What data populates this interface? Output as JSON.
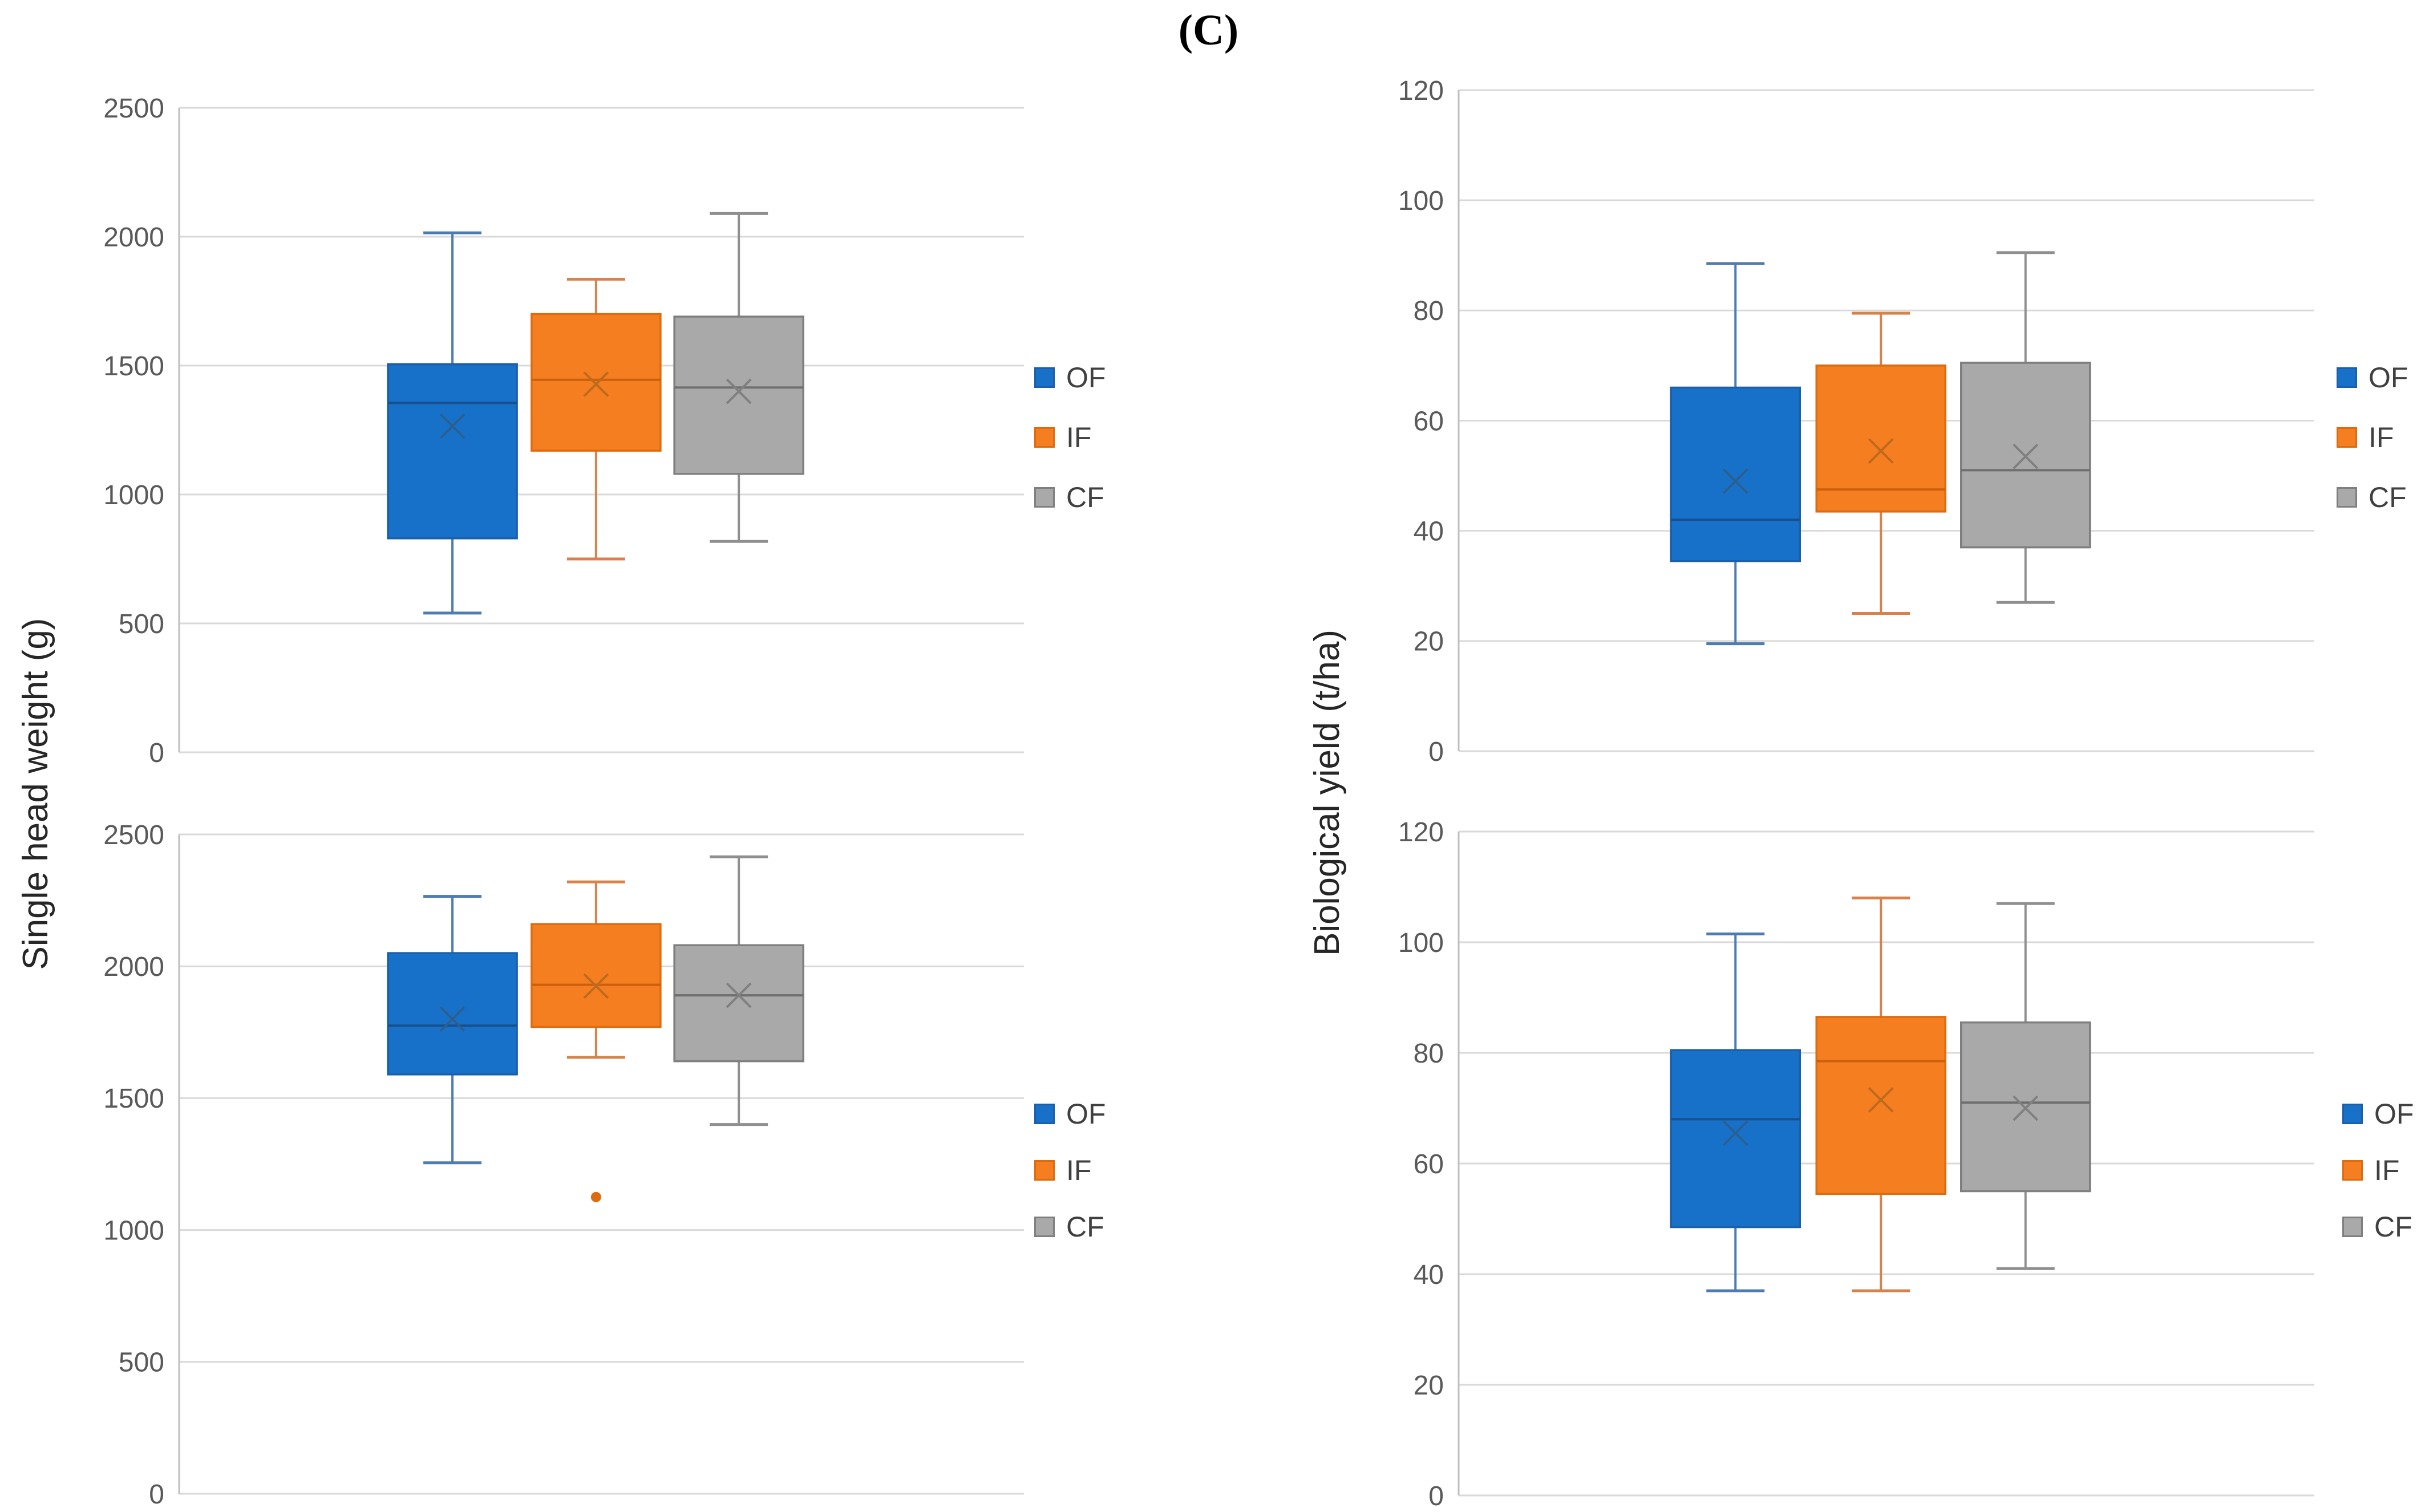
{
  "figure": {
    "title": "(C)"
  },
  "axis_titles": {
    "left": "Single head weight (g)",
    "right": "Biological yield (t/ha)"
  },
  "palette": {
    "gridline": "#D9D9D9",
    "axis_line": "#BFBFBF",
    "tick_label": "#595959",
    "legend_label": "#404040",
    "axis_title": "#262626",
    "figure_title": "#000000"
  },
  "chart_data": [
    {
      "id": "shw-top",
      "type": "boxplot",
      "panel": "top-left",
      "ylabel": "Single head weight (g)",
      "ylim": [
        0,
        2500
      ],
      "yticks": [
        0,
        500,
        1000,
        1500,
        2000,
        2500
      ],
      "grid": true,
      "legend_position": "right",
      "series": [
        {
          "name": "OF",
          "fill": "#1871C9",
          "border": "#1A5FA8",
          "median_color": "#17508C",
          "whisker_color": "#4E7CB0",
          "mean_color": "#2C5F8F",
          "min": 540,
          "q1": 830,
          "median": 1355,
          "mean": 1265,
          "q3": 1505,
          "max": 2015,
          "outliers": []
        },
        {
          "name": "IF",
          "fill": "#F57E20",
          "border": "#DD6B10",
          "median_color": "#CC5F0B",
          "whisker_color": "#D8824B",
          "mean_color": "#BE6A1E",
          "min": 750,
          "q1": 1170,
          "median": 1445,
          "mean": 1428,
          "q3": 1700,
          "max": 1835,
          "outliers": []
        },
        {
          "name": "CF",
          "fill": "#A9A9A9",
          "border": "#7F7F7F",
          "median_color": "#6E6E6E",
          "whisker_color": "#8F8F8F",
          "mean_color": "#808080",
          "min": 818,
          "q1": 1080,
          "median": 1415,
          "mean": 1400,
          "q3": 1690,
          "max": 2090,
          "outliers": []
        }
      ]
    },
    {
      "id": "by-top",
      "type": "boxplot",
      "panel": "top-right",
      "ylabel": "Biological yield (t/ha)",
      "ylim": [
        0,
        120
      ],
      "yticks": [
        0,
        20,
        40,
        60,
        80,
        100,
        120
      ],
      "grid": true,
      "legend_position": "right",
      "series": [
        {
          "name": "OF",
          "fill": "#1871C9",
          "border": "#1A5FA8",
          "median_color": "#17508C",
          "whisker_color": "#4E7CB0",
          "mean_color": "#2C5F8F",
          "min": 19.5,
          "q1": 34.5,
          "median": 42,
          "mean": 49,
          "q3": 66,
          "max": 88.5,
          "outliers": []
        },
        {
          "name": "IF",
          "fill": "#F57E20",
          "border": "#DD6B10",
          "median_color": "#CC5F0B",
          "whisker_color": "#D8824B",
          "mean_color": "#BE6A1E",
          "min": 25,
          "q1": 43.5,
          "median": 47.5,
          "mean": 54.5,
          "q3": 70,
          "max": 79.5,
          "outliers": []
        },
        {
          "name": "CF",
          "fill": "#A9A9A9",
          "border": "#7F7F7F",
          "median_color": "#6E6E6E",
          "whisker_color": "#8F8F8F",
          "mean_color": "#808080",
          "min": 27,
          "q1": 37,
          "median": 51,
          "mean": 53.5,
          "q3": 70.5,
          "max": 90.5,
          "outliers": []
        }
      ]
    },
    {
      "id": "shw-bottom",
      "type": "boxplot",
      "panel": "bottom-left",
      "ylabel": "Single head weight (g)",
      "ylim": [
        0,
        2500
      ],
      "yticks": [
        0,
        500,
        1000,
        1500,
        2000,
        2500
      ],
      "grid": true,
      "legend_position": "right",
      "series": [
        {
          "name": "OF",
          "fill": "#1871C9",
          "border": "#1A5FA8",
          "median_color": "#17508C",
          "whisker_color": "#4E7CB0",
          "mean_color": "#2C5F8F",
          "min": 1255,
          "q1": 1590,
          "median": 1775,
          "mean": 1800,
          "q3": 2050,
          "max": 2265,
          "outliers": []
        },
        {
          "name": "IF",
          "fill": "#F57E20",
          "border": "#DD6B10",
          "median_color": "#CC5F0B",
          "whisker_color": "#D8824B",
          "mean_color": "#BE6A1E",
          "min": 1655,
          "q1": 1770,
          "median": 1930,
          "mean": 1925,
          "q3": 2160,
          "max": 2320,
          "outliers": [
            1125
          ]
        },
        {
          "name": "CF",
          "fill": "#A9A9A9",
          "border": "#7F7F7F",
          "median_color": "#6E6E6E",
          "whisker_color": "#8F8F8F",
          "mean_color": "#808080",
          "min": 1400,
          "q1": 1640,
          "median": 1890,
          "mean": 1890,
          "q3": 2080,
          "max": 2415,
          "outliers": []
        }
      ]
    },
    {
      "id": "by-bottom",
      "type": "boxplot",
      "panel": "bottom-right",
      "ylabel": "Biological yield (t/ha)",
      "ylim": [
        0,
        120
      ],
      "yticks": [
        0,
        20,
        40,
        60,
        80,
        100,
        120
      ],
      "grid": true,
      "legend_position": "right",
      "series": [
        {
          "name": "OF",
          "fill": "#1871C9",
          "border": "#1A5FA8",
          "median_color": "#17508C",
          "whisker_color": "#4E7CB0",
          "mean_color": "#2C5F8F",
          "min": 37,
          "q1": 48.5,
          "median": 68,
          "mean": 65.5,
          "q3": 80.5,
          "max": 101.5,
          "outliers": []
        },
        {
          "name": "IF",
          "fill": "#F57E20",
          "border": "#DD6B10",
          "median_color": "#CC5F0B",
          "whisker_color": "#D8824B",
          "mean_color": "#BE6A1E",
          "min": 37,
          "q1": 54.5,
          "median": 78.5,
          "mean": 71.5,
          "q3": 86.5,
          "max": 108,
          "outliers": []
        },
        {
          "name": "CF",
          "fill": "#A9A9A9",
          "border": "#7F7F7F",
          "median_color": "#6E6E6E",
          "whisker_color": "#8F8F8F",
          "mean_color": "#808080",
          "min": 41,
          "q1": 55,
          "median": 71,
          "mean": 70,
          "q3": 85.5,
          "max": 107,
          "outliers": []
        }
      ]
    }
  ]
}
